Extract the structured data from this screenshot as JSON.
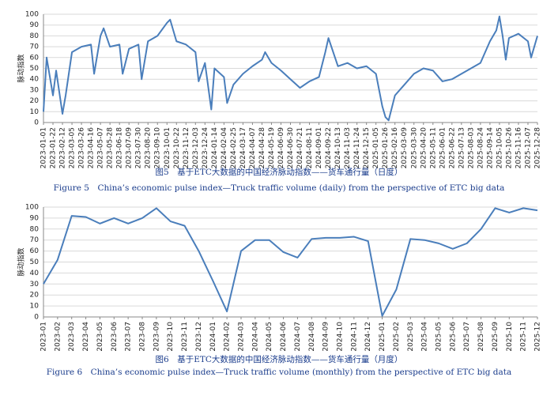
{
  "chart_data": [
    {
      "type": "line",
      "title": "图5　基于ETC大数据的中国经济脉动指数——货车通行量（日度）",
      "subtitle": "Figure 5　China’s economic pulse index—Truck traffic volume (daily) from the perspective of ETC big data",
      "ylabel": "脉动指数",
      "color": "#4a7ebb",
      "grid": true,
      "ylim": [
        0,
        100
      ],
      "yticks": [
        0,
        10,
        20,
        30,
        40,
        50,
        60,
        70,
        80,
        90,
        100
      ],
      "xlim": [
        "2023-01-01",
        "2025-12-28"
      ],
      "xticks": [
        "2023-01-01",
        "2023-01-22",
        "2023-02-12",
        "2023-03-05",
        "2023-03-26",
        "2023-04-16",
        "2023-05-07",
        "2023-05-28",
        "2023-06-18",
        "2023-07-09",
        "2023-07-30",
        "2023-08-20",
        "2023-09-10",
        "2023-10-01",
        "2023-10-22",
        "2023-11-12",
        "2023-12-03",
        "2023-12-24",
        "2024-01-14",
        "2024-02-04",
        "2024-02-25",
        "2024-03-17",
        "2024-04-07",
        "2024-04-28",
        "2024-05-19",
        "2024-06-09",
        "2024-06-30",
        "2024-07-21",
        "2024-08-11",
        "2024-09-01",
        "2024-09-22",
        "2024-10-13",
        "2024-11-03",
        "2024-11-24",
        "2024-12-15",
        "2025-01-05",
        "2025-01-26",
        "2025-02-16",
        "2025-03-09",
        "2025-03-30",
        "2025-04-20",
        "2025-05-11",
        "2025-06-01",
        "2025-06-22",
        "2025-07-13",
        "2025-08-03",
        "2025-08-24",
        "2025-09-14",
        "2025-10-05",
        "2025-10-26",
        "2025-11-16",
        "2025-12-07",
        "2025-12-28"
      ],
      "x": [
        "2023-01-01",
        "2023-01-08",
        "2023-01-22",
        "2023-01-29",
        "2023-02-12",
        "2023-02-19",
        "2023-03-05",
        "2023-03-26",
        "2023-04-16",
        "2023-04-23",
        "2023-05-07",
        "2023-05-14",
        "2023-05-28",
        "2023-06-18",
        "2023-06-25",
        "2023-07-09",
        "2023-07-30",
        "2023-08-06",
        "2023-08-20",
        "2023-09-10",
        "2023-10-01",
        "2023-10-08",
        "2023-10-22",
        "2023-11-12",
        "2023-12-03",
        "2023-12-10",
        "2023-12-24",
        "2024-01-07",
        "2024-01-14",
        "2024-02-04",
        "2024-02-11",
        "2024-02-25",
        "2024-03-17",
        "2024-04-07",
        "2024-04-28",
        "2024-05-05",
        "2024-05-19",
        "2024-06-09",
        "2024-06-30",
        "2024-07-21",
        "2024-08-11",
        "2024-09-01",
        "2024-09-15",
        "2024-09-22",
        "2024-10-13",
        "2024-11-03",
        "2024-11-24",
        "2024-12-15",
        "2025-01-05",
        "2025-01-19",
        "2025-01-26",
        "2025-02-02",
        "2025-02-16",
        "2025-03-09",
        "2025-03-30",
        "2025-04-20",
        "2025-05-11",
        "2025-06-01",
        "2025-06-22",
        "2025-07-13",
        "2025-08-03",
        "2025-08-24",
        "2025-09-14",
        "2025-09-28",
        "2025-10-05",
        "2025-10-12",
        "2025-10-19",
        "2025-10-26",
        "2025-11-16",
        "2025-12-07",
        "2025-12-14",
        "2025-12-28"
      ],
      "values": [
        10,
        60,
        25,
        48,
        8,
        25,
        65,
        70,
        72,
        45,
        80,
        87,
        70,
        72,
        45,
        68,
        72,
        40,
        75,
        80,
        92,
        95,
        75,
        72,
        65,
        38,
        55,
        12,
        50,
        42,
        18,
        35,
        45,
        52,
        58,
        65,
        55,
        48,
        40,
        32,
        38,
        42,
        65,
        78,
        52,
        55,
        50,
        52,
        45,
        15,
        5,
        2,
        25,
        35,
        45,
        50,
        48,
        38,
        40,
        45,
        50,
        55,
        75,
        85,
        98,
        80,
        58,
        78,
        82,
        75,
        60,
        80
      ]
    },
    {
      "type": "line",
      "title": "图6　基于ETC大数据的中国经济脉动指数——货车通行量（月度）",
      "subtitle": "Figure 6　China’s economic pulse index—Truck traffic volume (monthly) from the perspective of ETC big data",
      "ylabel": "脉动指数",
      "color": "#4a7ebb",
      "grid": true,
      "ylim": [
        0,
        100
      ],
      "yticks": [
        0,
        10,
        20,
        30,
        40,
        50,
        60,
        70,
        80,
        90,
        100
      ],
      "categories": [
        "2023-01",
        "2023-02",
        "2023-03",
        "2023-04",
        "2023-05",
        "2023-06",
        "2023-07",
        "2023-08",
        "2023-09",
        "2023-10",
        "2023-11",
        "2023-12",
        "2024-01",
        "2024-02",
        "2024-03",
        "2024-04",
        "2024-05",
        "2024-06",
        "2024-07",
        "2024-08",
        "2024-09",
        "2024-10",
        "2024-11",
        "2024-12",
        "2025-01",
        "2025-02",
        "2025-03",
        "2025-04",
        "2025-05",
        "2025-06",
        "2025-07",
        "2025-08",
        "2025-09",
        "2025-10",
        "2025-11",
        "2025-12"
      ],
      "values": [
        30,
        52,
        92,
        91,
        85,
        90,
        85,
        90,
        99,
        87,
        83,
        60,
        33,
        5,
        60,
        70,
        70,
        59,
        54,
        71,
        72,
        72,
        73,
        69,
        1,
        25,
        71,
        70,
        67,
        62,
        67,
        80,
        99,
        95,
        99,
        97
      ]
    }
  ]
}
